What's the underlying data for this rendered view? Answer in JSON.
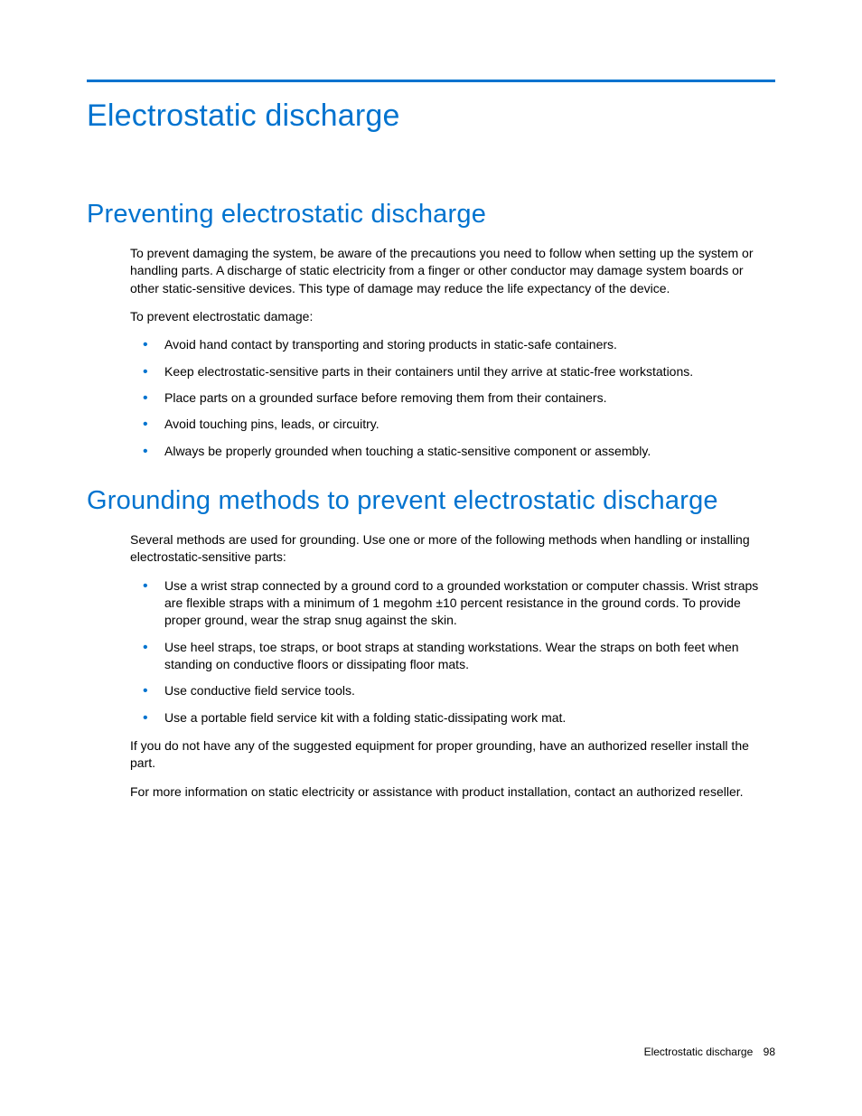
{
  "colors": {
    "accent": "#0073cf",
    "text": "#000000",
    "background": "#ffffff"
  },
  "typography": {
    "body_fontsize": 14,
    "h1_fontsize": 34,
    "h2_fontsize": 29,
    "footer_fontsize": 12,
    "heading_weight": 300
  },
  "page": {
    "title": "Electrostatic discharge",
    "sections": [
      {
        "heading": "Preventing electrostatic discharge",
        "paragraphs_before": [
          "To prevent damaging the system, be aware of the precautions you need to follow when setting up the system or handling parts. A discharge of static electricity from a finger or other conductor may damage system boards or other static-sensitive devices. This type of damage may reduce the life expectancy of the device.",
          "To prevent electrostatic damage:"
        ],
        "bullets": [
          "Avoid hand contact by transporting and storing products in static-safe containers.",
          "Keep electrostatic-sensitive parts in their containers until they arrive at static-free workstations.",
          "Place parts on a grounded surface before removing them from their containers.",
          "Avoid touching pins, leads, or circuitry.",
          "Always be properly grounded when touching a static-sensitive component or assembly."
        ],
        "paragraphs_after": []
      },
      {
        "heading": "Grounding methods to prevent electrostatic discharge",
        "paragraphs_before": [
          "Several methods are used for grounding. Use one or more of the following methods when handling or installing electrostatic-sensitive parts:"
        ],
        "bullets": [
          "Use a wrist strap connected by a ground cord to a grounded workstation or computer chassis. Wrist straps are flexible straps with a minimum of 1 megohm ±10 percent resistance in the ground cords. To provide proper ground, wear the strap snug against the skin.",
          "Use heel straps, toe straps, or boot straps at standing workstations. Wear the straps on both feet when standing on conductive floors or dissipating floor mats.",
          "Use conductive field service tools.",
          "Use a portable field service kit with a folding static-dissipating work mat."
        ],
        "paragraphs_after": [
          "If you do not have any of the suggested equipment for proper grounding, have an authorized reseller install the part.",
          "For more information on static electricity or assistance with product installation, contact an authorized reseller."
        ]
      }
    ],
    "footer": {
      "label": "Electrostatic discharge",
      "page_number": "98"
    }
  }
}
